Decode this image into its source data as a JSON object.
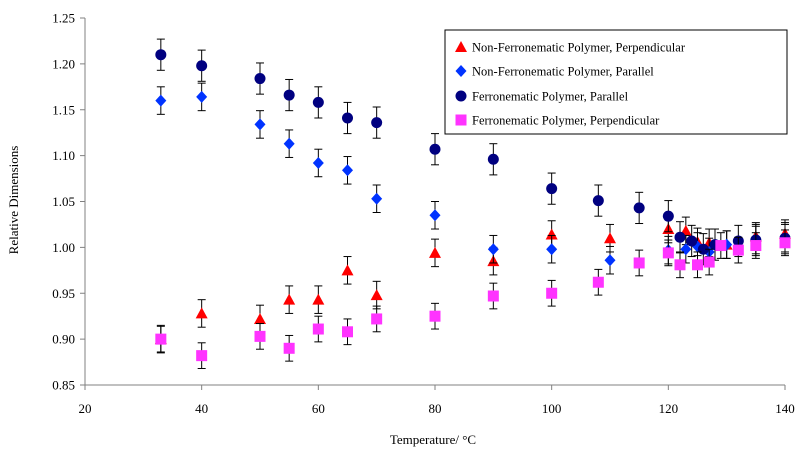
{
  "chart_data": {
    "type": "scatter",
    "title": "",
    "xlabel": "Temperature/ °C",
    "ylabel": "Relative Dimensions",
    "xlim": [
      20,
      140
    ],
    "ylim": [
      0.85,
      1.25
    ],
    "xticks": [
      20,
      40,
      60,
      80,
      100,
      120,
      140
    ],
    "yticks": [
      0.85,
      0.9,
      0.95,
      1.0,
      1.05,
      1.1,
      1.15,
      1.2,
      1.25
    ],
    "grid": false,
    "legend_position": "top-right",
    "series": [
      {
        "name": "Non-Ferronematic Polymer, Perpendicular",
        "marker": "triangle",
        "color": "#ff0000",
        "x": [
          33,
          40,
          50,
          55,
          60,
          65,
          70,
          80,
          90,
          100,
          110,
          120,
          123,
          125,
          127,
          130,
          135,
          140
        ],
        "y": [
          0.9,
          0.928,
          0.922,
          0.943,
          0.943,
          0.975,
          0.948,
          0.994,
          0.985,
          1.014,
          1.01,
          1.02,
          1.018,
          1.006,
          1.005,
          1.003,
          1.012,
          1.015
        ],
        "error": 0.015
      },
      {
        "name": "Non-Ferronematic Polymer, Parallel",
        "marker": "diamond",
        "color": "#0033ff",
        "x": [
          33,
          40,
          50,
          55,
          60,
          65,
          70,
          80,
          90,
          100,
          110,
          120,
          123,
          125,
          127,
          130,
          135,
          140
        ],
        "y": [
          1.16,
          1.164,
          1.134,
          1.113,
          1.092,
          1.084,
          1.053,
          1.035,
          0.998,
          0.998,
          0.986,
          0.997,
          0.998,
          1.001,
          0.995,
          1.003,
          1.008,
          1.01
        ],
        "error": 0.015
      },
      {
        "name": "Ferronematic Polymer, Parallel",
        "marker": "circle",
        "color": "#000080",
        "x": [
          33,
          40,
          50,
          55,
          60,
          65,
          70,
          80,
          90,
          100,
          108,
          115,
          120,
          122,
          124,
          126,
          128,
          132,
          135,
          140
        ],
        "y": [
          1.21,
          1.198,
          1.184,
          1.166,
          1.158,
          1.141,
          1.136,
          1.107,
          1.096,
          1.064,
          1.051,
          1.043,
          1.034,
          1.011,
          1.007,
          0.998,
          1.003,
          1.007,
          1.008,
          1.01
        ],
        "error": 0.017
      },
      {
        "name": "Ferronematic Polymer, Perpendicular",
        "marker": "square",
        "color": "#ff33ff",
        "x": [
          33,
          40,
          50,
          55,
          60,
          65,
          70,
          80,
          90,
          100,
          108,
          115,
          120,
          122,
          125,
          127,
          129,
          132,
          135,
          140
        ],
        "y": [
          0.9,
          0.882,
          0.903,
          0.89,
          0.911,
          0.908,
          0.922,
          0.925,
          0.947,
          0.95,
          0.962,
          0.983,
          0.994,
          0.981,
          0.981,
          0.984,
          1.002,
          0.997,
          1.002,
          1.005
        ],
        "error": 0.014
      }
    ]
  }
}
